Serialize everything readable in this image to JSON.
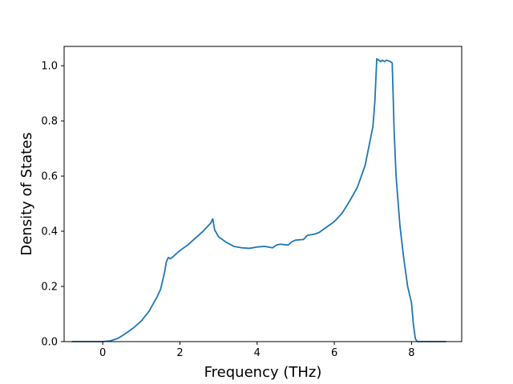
{
  "chart_data": {
    "type": "line",
    "title": "",
    "xlabel": "Frequency (THz)",
    "ylabel": "Density of States",
    "xlim": [
      -1.0,
      9.3
    ],
    "ylim": [
      0.0,
      1.07
    ],
    "xticks": [
      0,
      2,
      4,
      6,
      8
    ],
    "xtick_labels": [
      "0",
      "2",
      "4",
      "6",
      "8"
    ],
    "yticks": [
      0.0,
      0.2,
      0.4,
      0.6,
      0.8,
      1.0
    ],
    "ytick_labels": [
      "0.0",
      "0.2",
      "0.4",
      "0.6",
      "0.8",
      "1.0"
    ],
    "grid": false,
    "legend": "none",
    "series": [
      {
        "color": "#1f77b4",
        "x": [
          -0.8,
          0.0,
          0.2,
          0.4,
          0.6,
          0.8,
          1.0,
          1.2,
          1.4,
          1.5,
          1.6,
          1.65,
          1.7,
          1.75,
          1.8,
          2.0,
          2.2,
          2.4,
          2.6,
          2.8,
          2.85,
          2.9,
          3.0,
          3.2,
          3.4,
          3.6,
          3.8,
          4.0,
          4.2,
          4.4,
          4.5,
          4.6,
          4.8,
          4.9,
          5.0,
          5.2,
          5.3,
          5.5,
          5.6,
          5.8,
          6.0,
          6.2,
          6.4,
          6.6,
          6.8,
          7.0,
          7.05,
          7.1,
          7.15,
          7.2,
          7.25,
          7.3,
          7.35,
          7.4,
          7.45,
          7.5,
          7.55,
          7.6,
          7.7,
          7.8,
          7.9,
          8.0,
          8.05,
          8.1,
          8.15,
          8.9
        ],
        "y": [
          0.0,
          0.0,
          0.003,
          0.012,
          0.03,
          0.05,
          0.075,
          0.11,
          0.16,
          0.19,
          0.25,
          0.29,
          0.305,
          0.3,
          0.305,
          0.33,
          0.35,
          0.375,
          0.4,
          0.43,
          0.445,
          0.405,
          0.38,
          0.36,
          0.345,
          0.34,
          0.338,
          0.343,
          0.345,
          0.34,
          0.35,
          0.353,
          0.35,
          0.362,
          0.368,
          0.37,
          0.385,
          0.39,
          0.395,
          0.415,
          0.435,
          0.465,
          0.51,
          0.56,
          0.64,
          0.78,
          0.87,
          1.025,
          1.02,
          1.015,
          1.02,
          1.015,
          1.02,
          1.018,
          1.015,
          1.01,
          0.76,
          0.6,
          0.42,
          0.3,
          0.2,
          0.14,
          0.06,
          0.01,
          0.0,
          0.0
        ]
      }
    ]
  }
}
